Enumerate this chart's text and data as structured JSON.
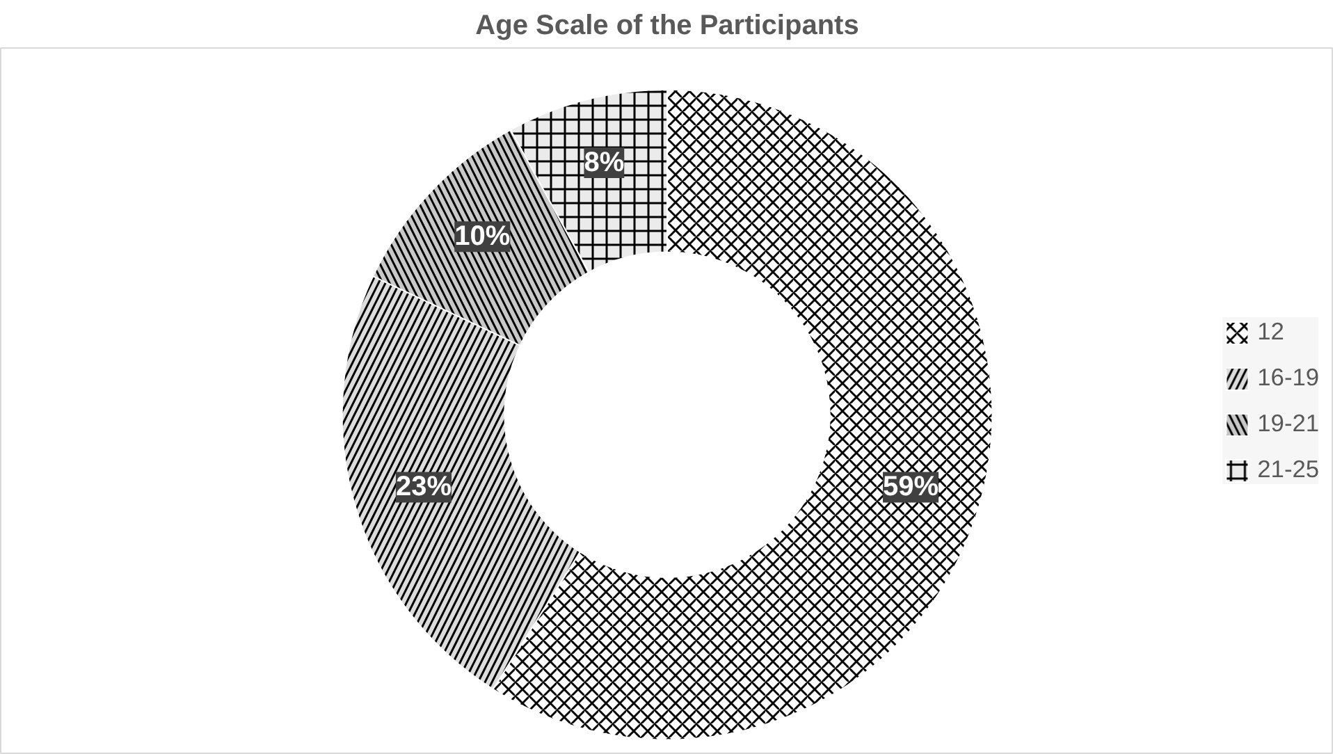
{
  "chart_data": {
    "type": "donut",
    "title": "Age Scale of the Participants",
    "categories": [
      "12",
      "16-19",
      "19-21",
      "21-25"
    ],
    "values": [
      59,
      23,
      10,
      8
    ],
    "value_labels": [
      "59%",
      "23%",
      "10%",
      "8%"
    ],
    "colors": [
      "#ffffff",
      "#dcdcdc",
      "#c8c8c8",
      "#ebebeb"
    ],
    "legend": "right"
  }
}
